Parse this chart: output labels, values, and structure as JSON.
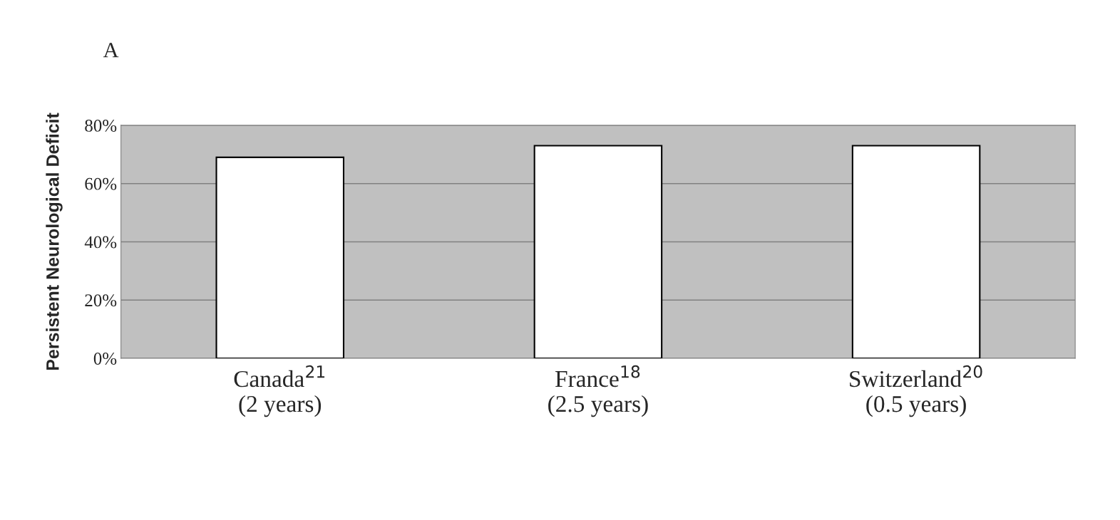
{
  "chart_data": {
    "type": "bar",
    "title": "A",
    "ylabel": "Persistent Neurological Deficit",
    "categories": [
      "Canada$^{21}$\n(2 years)",
      "France$^{18}$\n(2.5 years)",
      "Switzerland$^{20}$\n(0.5 years)"
    ],
    "values": [
      69,
      73,
      73
    ],
    "color": "#ffffff",
    "ylim": [
      0,
      80
    ],
    "yticks": [
      {
        "value": 0,
        "label": "0%"
      },
      {
        "value": 20,
        "label": "20%"
      },
      {
        "value": 40,
        "label": "40%"
      },
      {
        "value": 60,
        "label": "60%"
      },
      {
        "value": 80,
        "label": "80%"
      }
    ],
    "grid": "y",
    "legend": false
  }
}
